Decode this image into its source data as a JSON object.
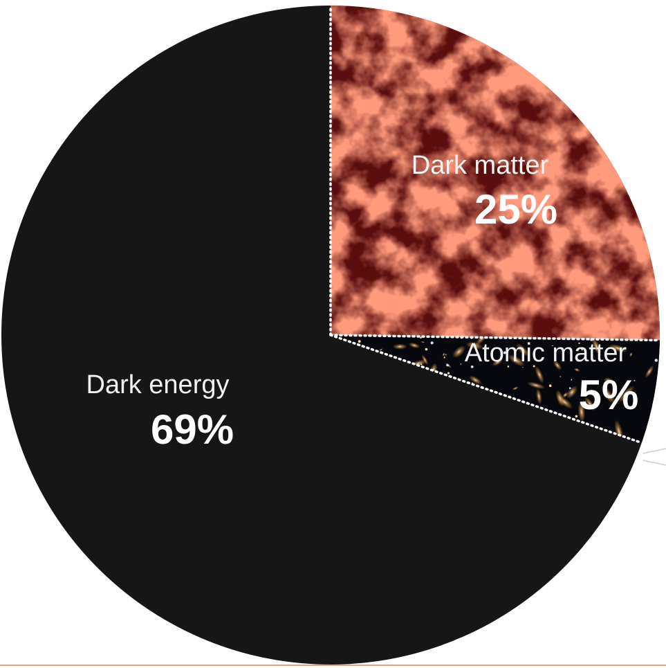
{
  "chart_data": {
    "type": "pie",
    "title": "",
    "slices": [
      {
        "label": "Dark energy",
        "value_label": "69%",
        "value": 69,
        "color": "#161616",
        "texture": "solid"
      },
      {
        "label": "Dark matter",
        "value_label": "25%",
        "value": 25,
        "color": "#8e1a18",
        "texture": "cosmic-web"
      },
      {
        "label": "Atomic matter",
        "value_label": "5%",
        "value": 5,
        "color": "#06080d",
        "texture": "galaxy-field"
      }
    ],
    "legend": "none",
    "labels_position": "inside"
  },
  "colors": {
    "dark_energy": "#161616",
    "dark_matter_base": "#5a0f0e",
    "dark_matter_filament": "#e0402c",
    "atomic_base": "#06080d",
    "divider": "#ffffff",
    "bottom_rule": "#e8a27e"
  }
}
